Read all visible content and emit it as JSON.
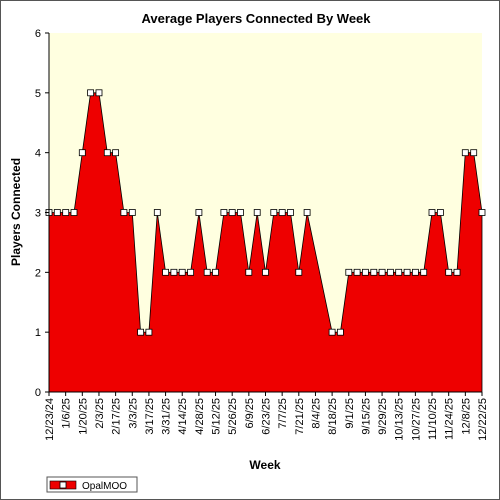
{
  "chart_data": {
    "type": "area",
    "title": "Average Players Connected By Week",
    "xlabel": "Week",
    "ylabel": "Players Connected",
    "ylim": [
      0,
      6
    ],
    "yticks": [
      "0",
      "1",
      "2",
      "3",
      "4",
      "5",
      "6"
    ],
    "xticks": [
      "12/23/24",
      "1/6/25",
      "1/20/25",
      "2/3/25",
      "2/17/25",
      "3/3/25",
      "3/17/25",
      "3/31/25",
      "4/14/25",
      "4/28/25",
      "5/12/25",
      "5/26/25",
      "6/9/25",
      "6/23/25",
      "7/7/25",
      "7/21/25",
      "8/4/25",
      "8/18/25",
      "9/1/25",
      "9/15/25",
      "9/29/25",
      "10/13/25",
      "10/27/25",
      "11/10/25",
      "11/24/25",
      "12/8/25",
      "12/22/25"
    ],
    "grid": false,
    "legend_position": "bottom-left",
    "series": [
      {
        "name": "OpalMOO",
        "color": "#ee0000",
        "x": [
          "12/23/24",
          "12/30/24",
          "1/6/25",
          "1/13/25",
          "1/20/25",
          "1/27/25",
          "2/3/25",
          "2/10/25",
          "2/17/25",
          "2/24/25",
          "3/3/25",
          "3/10/25",
          "3/17/25",
          "3/24/25",
          "3/31/25",
          "4/7/25",
          "4/14/25",
          "4/21/25",
          "4/28/25",
          "5/5/25",
          "5/12/25",
          "5/19/25",
          "5/26/25",
          "6/2/25",
          "6/9/25",
          "6/16/25",
          "6/23/25",
          "6/30/25",
          "7/7/25",
          "7/14/25",
          "7/21/25",
          "7/28/25",
          "8/18/25",
          "8/25/25",
          "9/1/25",
          "9/8/25",
          "9/15/25",
          "9/22/25",
          "9/29/25",
          "10/6/25",
          "10/13/25",
          "10/20/25",
          "10/27/25",
          "11/3/25",
          "11/10/25",
          "11/17/25",
          "11/24/25",
          "12/1/25",
          "12/8/25",
          "12/15/25",
          "12/22/25"
        ],
        "values": [
          3,
          3,
          3,
          3,
          4,
          5,
          5,
          4,
          4,
          3,
          3,
          1,
          1,
          3,
          2,
          2,
          2,
          2,
          3,
          2,
          2,
          3,
          3,
          3,
          2,
          3,
          2,
          3,
          3,
          3,
          2,
          3,
          1,
          1,
          2,
          2,
          2,
          2,
          2,
          2,
          2,
          2,
          2,
          2,
          3,
          3,
          2,
          2,
          4,
          4,
          3
        ]
      }
    ]
  }
}
